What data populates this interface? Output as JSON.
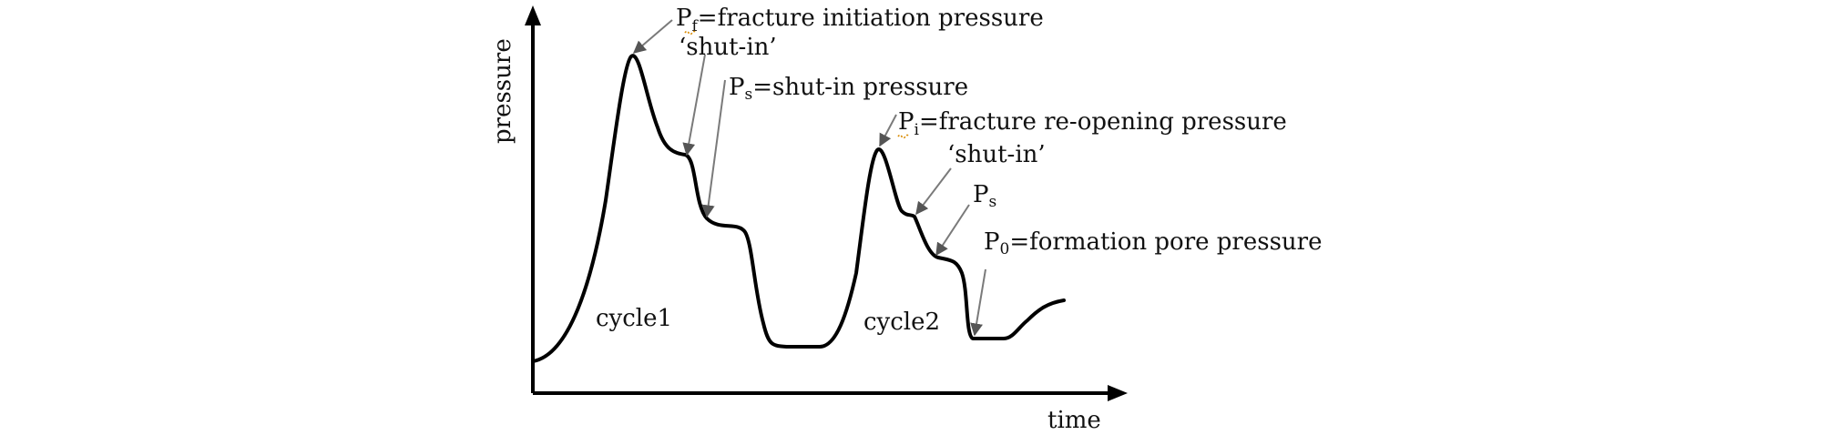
{
  "axes": {
    "y_label": "pressure",
    "x_label": "time"
  },
  "annotations": {
    "pf": {
      "symbol": "P",
      "subscript": "f",
      "text": "=fracture initiation pressure"
    },
    "shutin_1": "‘shut-in’",
    "ps_1": {
      "symbol": "P",
      "subscript": "s",
      "text": "=shut-in pressure"
    },
    "pi": {
      "symbol": "P",
      "subscript": "i",
      "text": "=fracture re-opening pressure"
    },
    "shutin_2": "‘shut-in’",
    "ps_2": {
      "symbol": "P",
      "subscript": "s"
    },
    "p0": {
      "symbol": "P",
      "subscript": "0",
      "text": "=formation pore pressure"
    }
  },
  "cycles": {
    "cycle1": "cycle1",
    "cycle2": "cycle2"
  },
  "colors": {
    "line": "#000000",
    "leader": "#7a7a7a",
    "text": "#111111"
  }
}
